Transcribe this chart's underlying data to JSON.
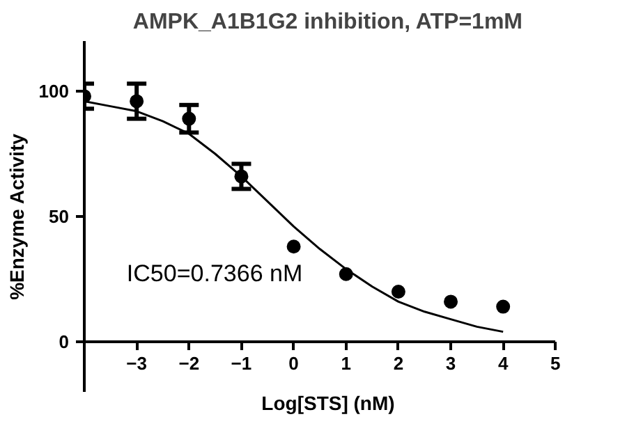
{
  "chart_data": {
    "type": "scatter",
    "title": "AMPK_A1B1G2 inhibition, ATP=1mM",
    "xlabel": "Log[STS] (nM)",
    "ylabel": "%Enzyme Activity",
    "annotations": [
      "IC50=0.7366 nM"
    ],
    "xlim": [
      -4,
      5
    ],
    "ylim": [
      -20,
      120
    ],
    "xticks": [
      -3,
      -2,
      -1,
      0,
      1,
      2,
      3,
      4,
      5
    ],
    "yticks": [
      0,
      50,
      100
    ],
    "grid": false,
    "marker": "circle",
    "series": [
      {
        "color": "#000000",
        "x": [
          -4,
          -3,
          -2,
          -1,
          0,
          1,
          2,
          3,
          4
        ],
        "values": [
          98,
          96,
          89,
          66,
          38,
          27,
          20,
          16,
          14
        ],
        "errors": [
          5,
          7,
          5.5,
          5,
          null,
          null,
          null,
          null,
          null
        ]
      },
      {
        "type": "line",
        "marker": "none",
        "color": "#000000",
        "line_style": "solid",
        "x": [
          -4,
          -3.5,
          -3,
          -2.5,
          -2,
          -1.5,
          -1,
          -0.5,
          0,
          0.5,
          1,
          1.5,
          2,
          2.5,
          3,
          3.5,
          4
        ],
        "values": [
          96,
          94,
          92,
          88,
          83,
          75,
          66,
          56,
          46,
          37,
          29,
          22,
          16,
          12,
          9,
          6,
          4
        ]
      }
    ]
  }
}
